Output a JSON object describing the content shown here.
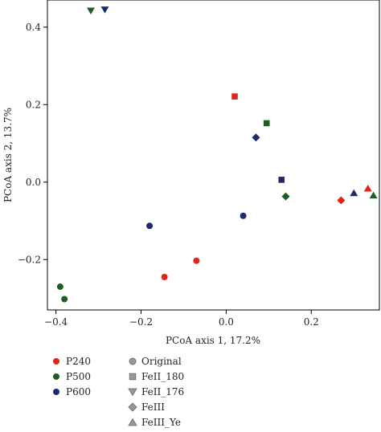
{
  "chart_data": {
    "type": "scatter",
    "title": "",
    "xlabel": "PCoA axis 1, 17.2%",
    "ylabel": "PCoA axis 2, 13.7%",
    "xlim": [
      -0.42,
      0.36
    ],
    "ylim": [
      -0.33,
      0.47
    ],
    "x_ticks": [
      -0.4,
      -0.2,
      0.0,
      0.2
    ],
    "x_tick_labels": [
      "−0.4",
      "−0.2",
      "0.0",
      "0.2"
    ],
    "y_ticks": [
      -0.2,
      0.0,
      0.2,
      0.4
    ],
    "y_tick_labels": [
      "−0.2",
      "0.0",
      "0.2",
      "0.4"
    ],
    "grid": false,
    "legend_placement": "bottom-left, below plot",
    "color_legend": {
      "title": "",
      "entries": [
        {
          "label": "P240",
          "color": "#e2231a"
        },
        {
          "label": "P500",
          "color": "#1d5e24"
        },
        {
          "label": "P600",
          "color": "#1f2a6b"
        }
      ]
    },
    "shape_legend": {
      "title": "",
      "marker_color": "#999999",
      "entries": [
        {
          "label": "Original",
          "marker": "circle"
        },
        {
          "label": "FeII_180",
          "marker": "square"
        },
        {
          "label": "FeII_176",
          "marker": "triangle-down"
        },
        {
          "label": "FeIII",
          "marker": "diamond"
        },
        {
          "label": "FeIII_Ye",
          "marker": "triangle-up"
        }
      ]
    },
    "points": [
      {
        "group": "P240",
        "treatment": "Original",
        "x": -0.07,
        "y": -0.203
      },
      {
        "group": "P240",
        "treatment": "Original",
        "x": -0.145,
        "y": -0.245
      },
      {
        "group": "P500",
        "treatment": "Original",
        "x": -0.39,
        "y": -0.27
      },
      {
        "group": "P500",
        "treatment": "Original",
        "x": -0.38,
        "y": -0.302
      },
      {
        "group": "P600",
        "treatment": "Original",
        "x": -0.18,
        "y": -0.113
      },
      {
        "group": "P600",
        "treatment": "Original",
        "x": 0.04,
        "y": -0.087
      },
      {
        "group": "P240",
        "treatment": "FeII_180",
        "x": 0.02,
        "y": 0.221
      },
      {
        "group": "P500",
        "treatment": "FeII_180",
        "x": 0.095,
        "y": 0.152
      },
      {
        "group": "P600",
        "treatment": "FeII_180",
        "x": 0.13,
        "y": 0.006
      },
      {
        "group": "P500",
        "treatment": "FeII_176",
        "x": -0.318,
        "y": 0.442
      },
      {
        "group": "P600",
        "treatment": "FeII_176",
        "x": -0.285,
        "y": 0.445
      },
      {
        "group": "P600",
        "treatment": "FeIII",
        "x": 0.07,
        "y": 0.115
      },
      {
        "group": "P500",
        "treatment": "FeIII",
        "x": 0.14,
        "y": -0.037
      },
      {
        "group": "P240",
        "treatment": "FeIII",
        "x": 0.27,
        "y": -0.047
      },
      {
        "group": "P600",
        "treatment": "FeIII_Ye",
        "x": 0.3,
        "y": -0.028
      },
      {
        "group": "P240",
        "treatment": "FeIII_Ye",
        "x": 0.333,
        "y": -0.016
      },
      {
        "group": "P500",
        "treatment": "FeIII_Ye",
        "x": 0.346,
        "y": -0.034
      }
    ]
  }
}
